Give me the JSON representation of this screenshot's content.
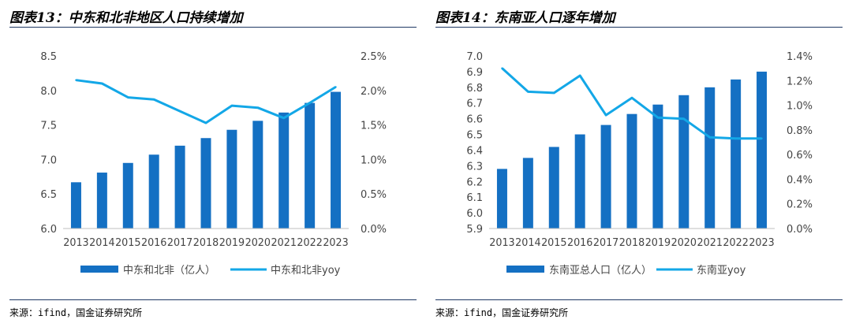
{
  "left_figure": {
    "title": "图表13：中东和北非地区人口持续增加",
    "source": "来源：ifind，国金证券研究所"
  },
  "right_figure": {
    "title": "图表14：东南亚人口逐年增加",
    "source": "来源：ifind，国金证券研究所"
  },
  "colors": {
    "bar": "#1470c3",
    "line": "#13a7e7",
    "rule": "#1f3864"
  },
  "chart_data": [
    {
      "type": "bar+line",
      "categories": [
        "2013",
        "2014",
        "2015",
        "2016",
        "2017",
        "2018",
        "2019",
        "2020",
        "2021",
        "2022",
        "2023"
      ],
      "series": [
        {
          "name": "中东和北非（亿人）",
          "type": "bar",
          "axis": "left",
          "values": [
            6.67,
            6.81,
            6.95,
            7.07,
            7.2,
            7.31,
            7.43,
            7.56,
            7.68,
            7.82,
            7.98
          ]
        },
        {
          "name": "中东和北非yoy",
          "type": "line",
          "axis": "right",
          "values": [
            0.0215,
            0.021,
            0.019,
            0.0187,
            0.017,
            0.0153,
            0.0178,
            0.0175,
            0.016,
            0.0182,
            0.0205
          ]
        }
      ],
      "y_left": {
        "min": 6.0,
        "max": 8.5,
        "ticks": [
          "8.5",
          "8.0",
          "7.5",
          "7.0",
          "6.5",
          "6.0"
        ]
      },
      "y_right": {
        "min": 0,
        "max": 0.025,
        "ticks": [
          "2.5%",
          "2.0%",
          "1.5%",
          "1.0%",
          "0.5%",
          "0.0%"
        ]
      },
      "legend": [
        "中东和北非（亿人）",
        "中东和北非yoy"
      ]
    },
    {
      "type": "bar+line",
      "categories": [
        "2013",
        "2014",
        "2015",
        "2016",
        "2017",
        "2018",
        "2019",
        "2020",
        "2021",
        "2022",
        "2023"
      ],
      "series": [
        {
          "name": "东南亚总人口（亿人）",
          "type": "bar",
          "axis": "left",
          "values": [
            6.28,
            6.35,
            6.42,
            6.5,
            6.56,
            6.63,
            6.69,
            6.75,
            6.8,
            6.85,
            6.9
          ]
        },
        {
          "name": "东南亚yoy",
          "type": "line",
          "axis": "right",
          "values": [
            0.013,
            0.0111,
            0.011,
            0.0124,
            0.0092,
            0.0106,
            0.009,
            0.0089,
            0.0074,
            0.0073,
            0.0073
          ]
        }
      ],
      "y_left": {
        "min": 5.9,
        "max": 7.0,
        "ticks": [
          "7.0",
          "6.9",
          "6.8",
          "6.7",
          "6.6",
          "6.5",
          "6.4",
          "6.3",
          "6.2",
          "6.1",
          "6.0",
          "5.9"
        ]
      },
      "y_right": {
        "min": 0,
        "max": 0.014,
        "ticks": [
          "1.4%",
          "1.2%",
          "1.0%",
          "0.8%",
          "0.6%",
          "0.4%",
          "0.2%",
          "0.0%"
        ]
      },
      "legend": [
        "东南亚总人口（亿人）",
        "东南亚yoy"
      ]
    }
  ]
}
